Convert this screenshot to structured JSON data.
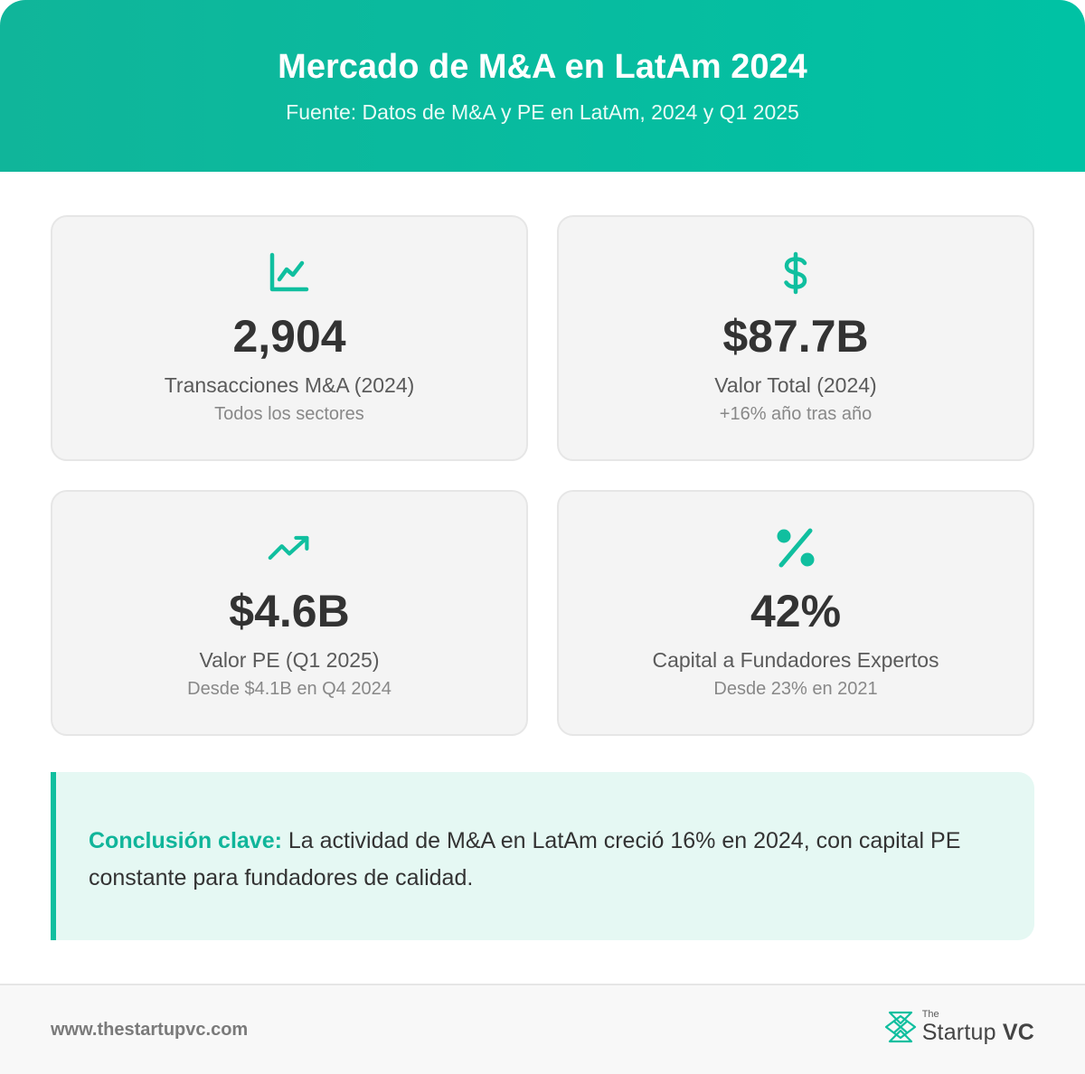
{
  "header": {
    "title": "Mercado de M&A en LatAm 2024",
    "subtitle": "Fuente: Datos de M&A y PE en LatAm, 2024 y Q1 2025"
  },
  "accent_color": "#10b59a",
  "cards": [
    {
      "icon": "line-chart-icon",
      "value": "2,904",
      "label": "Transacciones M&A (2024)",
      "note": "Todos los sectores"
    },
    {
      "icon": "dollar-icon",
      "value": "$87.7B",
      "label": "Valor Total (2024)",
      "note": "+16% año tras año"
    },
    {
      "icon": "trending-up-icon",
      "value": "$4.6B",
      "label": "Valor PE (Q1 2025)",
      "note": "Desde $4.1B en Q4 2024"
    },
    {
      "icon": "percent-icon",
      "value": "42%",
      "label": "Capital a Fundadores Expertos",
      "note": "Desde 23% en 2021"
    }
  ],
  "conclusion": {
    "lead": "Conclusión clave:",
    "text": " La actividad de M&A en LatAm creció 16% en 2024, con capital PE constante para fundadores de calidad."
  },
  "footer": {
    "url": "www.thestartupvc.com",
    "brand_small": "The",
    "brand_main": "Startup",
    "brand_vc": "VC"
  }
}
